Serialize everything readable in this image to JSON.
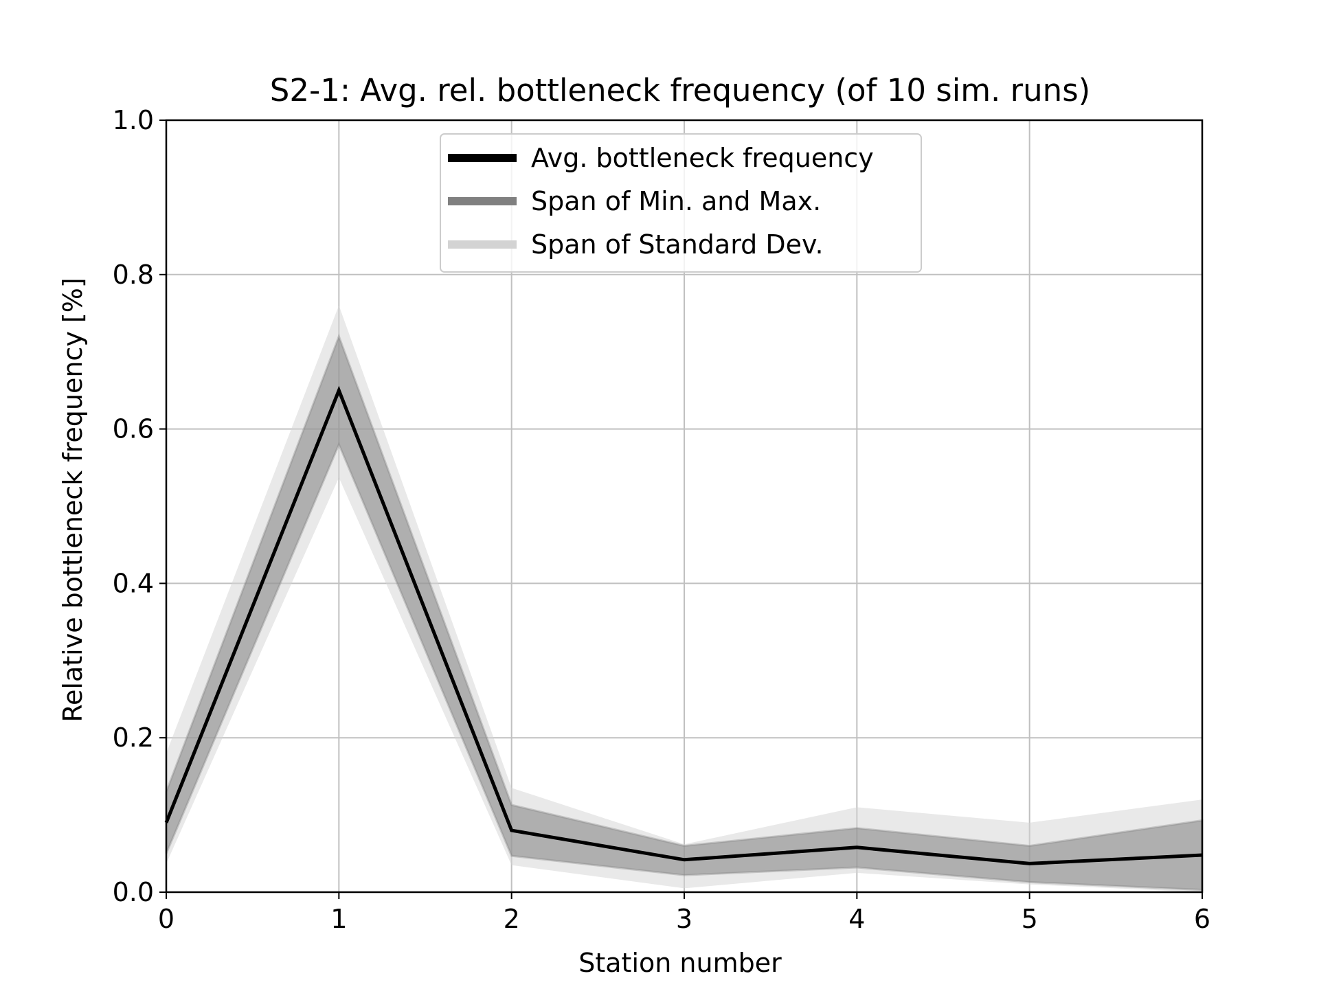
{
  "chart_data": {
    "type": "line",
    "title": "S2-1: Avg. rel. bottleneck frequency (of 10 sim. runs)",
    "xlabel": "Station number",
    "ylabel": "Relative bottleneck frequency [%]",
    "xlim": [
      0,
      6
    ],
    "ylim": [
      0.0,
      1.0
    ],
    "x_ticks": [
      "0",
      "1",
      "2",
      "3",
      "4",
      "5",
      "6"
    ],
    "y_ticks": [
      "0.0",
      "0.2",
      "0.4",
      "0.6",
      "0.8",
      "1.0"
    ],
    "grid": true,
    "legend_position": "upper center",
    "x": [
      0,
      1,
      2,
      3,
      4,
      5,
      6
    ],
    "series": [
      {
        "name": "Avg. bottleneck frequency",
        "kind": "line",
        "color": "#000000",
        "values": [
          0.09,
          0.65,
          0.08,
          0.042,
          0.058,
          0.037,
          0.048
        ]
      },
      {
        "name": "Span of Min. and Max.",
        "kind": "band",
        "color": "#808080",
        "lower": [
          0.05,
          0.58,
          0.047,
          0.022,
          0.032,
          0.013,
          0.003
        ],
        "upper": [
          0.13,
          0.72,
          0.113,
          0.06,
          0.083,
          0.06,
          0.093
        ]
      },
      {
        "name": "Span of Standard Dev.",
        "kind": "band",
        "color": "#d3d3d3",
        "lower": [
          0.037,
          0.537,
          0.035,
          0.005,
          0.025,
          0.01,
          0.0
        ],
        "upper": [
          0.18,
          0.76,
          0.135,
          0.062,
          0.11,
          0.09,
          0.12
        ]
      }
    ]
  }
}
